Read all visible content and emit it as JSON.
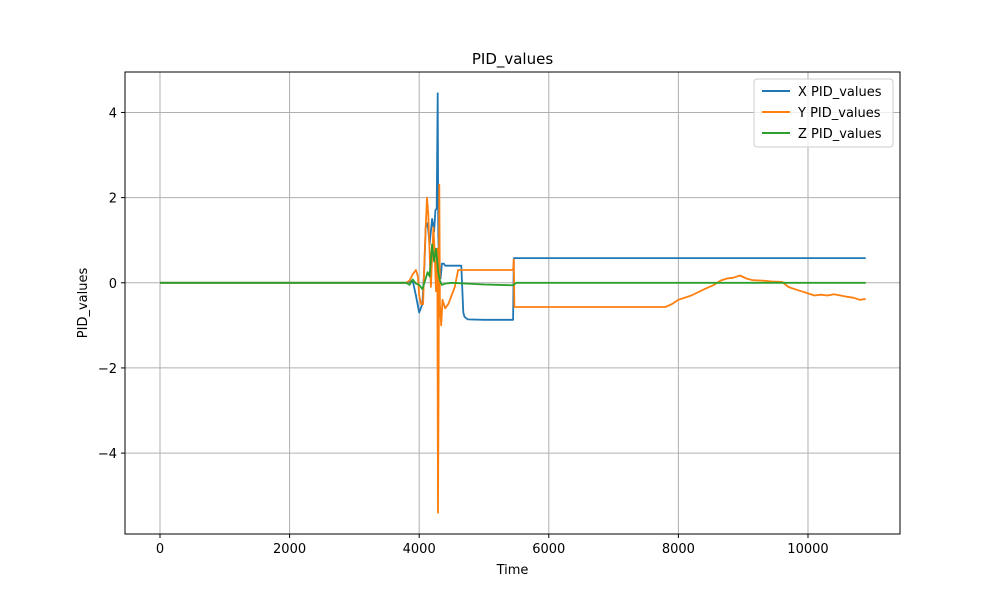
{
  "chart_data": {
    "type": "line",
    "title": "PID_values",
    "xlabel": "Time",
    "ylabel": "PID_values",
    "xlim": [
      -540,
      11420
    ],
    "ylim": [
      -5.9,
      4.95
    ],
    "xticks": [
      0,
      2000,
      4000,
      6000,
      8000,
      10000
    ],
    "xtick_labels": [
      "0",
      "2000",
      "4000",
      "6000",
      "8000",
      "10000"
    ],
    "yticks": [
      -4,
      -2,
      0,
      2,
      4
    ],
    "ytick_labels": [
      "−4",
      "−2",
      "0",
      "2",
      "4"
    ],
    "grid": true,
    "legend_position": "top-right",
    "series": [
      {
        "name": "X PID_values",
        "color": "#1f77b4",
        "points": [
          [
            0,
            0
          ],
          [
            1000,
            0
          ],
          [
            2000,
            0
          ],
          [
            3000,
            0
          ],
          [
            3800,
            0
          ],
          [
            3900,
            0.05
          ],
          [
            3950,
            -0.3
          ],
          [
            4000,
            -0.7
          ],
          [
            4050,
            -0.5
          ],
          [
            4080,
            0.4
          ],
          [
            4100,
            1.3
          ],
          [
            4130,
            1.4
          ],
          [
            4160,
            0.9
          ],
          [
            4200,
            1.5
          ],
          [
            4230,
            1.2
          ],
          [
            4250,
            1.7
          ],
          [
            4270,
            1.75
          ],
          [
            4285,
            4.45
          ],
          [
            4295,
            1.1
          ],
          [
            4310,
            0.3
          ],
          [
            4330,
            0.1
          ],
          [
            4350,
            0.45
          ],
          [
            4380,
            0.45
          ],
          [
            4400,
            0.4
          ],
          [
            4650,
            0.4
          ],
          [
            4680,
            -0.7
          ],
          [
            4700,
            -0.8
          ],
          [
            4750,
            -0.86
          ],
          [
            5000,
            -0.87
          ],
          [
            5300,
            -0.87
          ],
          [
            5450,
            -0.87
          ],
          [
            5460,
            0.58
          ],
          [
            6000,
            0.58
          ],
          [
            7000,
            0.58
          ],
          [
            8000,
            0.58
          ],
          [
            9000,
            0.58
          ],
          [
            10000,
            0.58
          ],
          [
            10890,
            0.58
          ]
        ]
      },
      {
        "name": "Y PID_values",
        "color": "#ff7f0e",
        "points": [
          [
            0,
            0
          ],
          [
            1000,
            0
          ],
          [
            2000,
            0
          ],
          [
            3000,
            0
          ],
          [
            3800,
            0
          ],
          [
            3850,
            0.05
          ],
          [
            3900,
            0.2
          ],
          [
            3950,
            0.3
          ],
          [
            3980,
            0.15
          ],
          [
            4000,
            -0.3
          ],
          [
            4030,
            -0.5
          ],
          [
            4060,
            -0.5
          ],
          [
            4080,
            0.5
          ],
          [
            4100,
            1.3
          ],
          [
            4120,
            2.0
          ],
          [
            4140,
            1.6
          ],
          [
            4160,
            0.7
          ],
          [
            4180,
            -0.1
          ],
          [
            4200,
            0.6
          ],
          [
            4220,
            1.3
          ],
          [
            4240,
            0.7
          ],
          [
            4260,
            -0.2
          ],
          [
            4280,
            0.8
          ],
          [
            4290,
            -5.4
          ],
          [
            4300,
            -2.3
          ],
          [
            4310,
            2.3
          ],
          [
            4320,
            -0.5
          ],
          [
            4340,
            -1.0
          ],
          [
            4360,
            -0.4
          ],
          [
            4400,
            -0.6
          ],
          [
            4450,
            -0.5
          ],
          [
            4500,
            -0.3
          ],
          [
            4550,
            -0.1
          ],
          [
            4600,
            0.3
          ],
          [
            5000,
            0.3
          ],
          [
            5450,
            0.3
          ],
          [
            5460,
            0.55
          ],
          [
            5470,
            -0.57
          ],
          [
            6000,
            -0.57
          ],
          [
            7000,
            -0.57
          ],
          [
            7800,
            -0.57
          ],
          [
            7900,
            -0.5
          ],
          [
            8000,
            -0.4
          ],
          [
            8200,
            -0.3
          ],
          [
            8400,
            -0.15
          ],
          [
            8550,
            -0.05
          ],
          [
            8650,
            0.05
          ],
          [
            8750,
            0.1
          ],
          [
            8850,
            0.12
          ],
          [
            8950,
            0.17
          ],
          [
            9050,
            0.1
          ],
          [
            9150,
            0.06
          ],
          [
            9300,
            0.05
          ],
          [
            9450,
            0.03
          ],
          [
            9600,
            0.02
          ],
          [
            9700,
            -0.1
          ],
          [
            9800,
            -0.15
          ],
          [
            9900,
            -0.2
          ],
          [
            10000,
            -0.25
          ],
          [
            10100,
            -0.3
          ],
          [
            10200,
            -0.28
          ],
          [
            10300,
            -0.3
          ],
          [
            10400,
            -0.27
          ],
          [
            10500,
            -0.3
          ],
          [
            10600,
            -0.33
          ],
          [
            10700,
            -0.35
          ],
          [
            10800,
            -0.4
          ],
          [
            10890,
            -0.38
          ]
        ]
      },
      {
        "name": "Z PID_values",
        "color": "#2ca02c",
        "points": [
          [
            0,
            0
          ],
          [
            1000,
            0
          ],
          [
            2000,
            0
          ],
          [
            3000,
            0
          ],
          [
            3800,
            0
          ],
          [
            3850,
            -0.05
          ],
          [
            3900,
            0.08
          ],
          [
            3950,
            -0.02
          ],
          [
            4000,
            -0.05
          ],
          [
            4050,
            -0.15
          ],
          [
            4100,
            0.1
          ],
          [
            4130,
            0.25
          ],
          [
            4160,
            0.15
          ],
          [
            4200,
            0.9
          ],
          [
            4230,
            0.5
          ],
          [
            4260,
            0.8
          ],
          [
            4290,
            0.3
          ],
          [
            4300,
            0.2
          ],
          [
            4320,
            0.05
          ],
          [
            4350,
            -0.05
          ],
          [
            4400,
            -0.02
          ],
          [
            4500,
            0.0
          ],
          [
            5000,
            -0.04
          ],
          [
            5450,
            -0.06
          ],
          [
            5500,
            0
          ],
          [
            6000,
            0
          ],
          [
            7000,
            0
          ],
          [
            8000,
            0
          ],
          [
            9000,
            0
          ],
          [
            10000,
            0
          ],
          [
            10890,
            0
          ]
        ]
      }
    ]
  }
}
